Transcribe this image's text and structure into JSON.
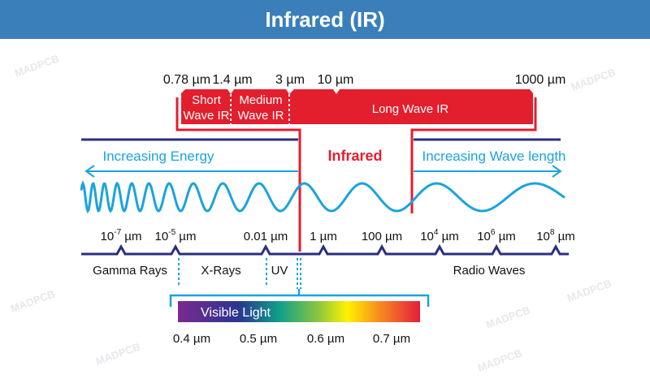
{
  "title": "Infrared (IR)",
  "watermark": "MADPCB",
  "ir_bands": {
    "boundaries": [
      "0.78 µm",
      "1.4 µm",
      "3 µm",
      "10 µm",
      "1000 µm"
    ],
    "short": [
      "Short",
      "Wave IR"
    ],
    "medium": [
      "Medium",
      "Wave IR"
    ],
    "long": "Long Wave IR"
  },
  "infrared_label": "Infrared",
  "increasing_energy": "Increasing Energy",
  "increasing_wavelength": "Increasing Wave length",
  "axis_ticks": [
    {
      "base": "10",
      "exp": "-7",
      "unit": " µm"
    },
    {
      "base": "10",
      "exp": "-5",
      "unit": " µm"
    },
    {
      "base": "0.01",
      "exp": "",
      "unit": " µm"
    },
    {
      "base": "1",
      "exp": "",
      "unit": " µm"
    },
    {
      "base": "100",
      "exp": "",
      "unit": " µm"
    },
    {
      "base": "10",
      "exp": "4",
      "unit": " µm"
    },
    {
      "base": "10",
      "exp": "6",
      "unit": " µm"
    },
    {
      "base": "10",
      "exp": "8",
      "unit": " µm"
    }
  ],
  "regions": {
    "gamma": "Gamma Rays",
    "xray": "X-Rays",
    "uv": "UV",
    "radio": "Radio Waves"
  },
  "visible": {
    "label": "Visible Light",
    "ticks": [
      "0.4 µm",
      "0.5 µm",
      "0.6 µm",
      "0.7 µm"
    ]
  },
  "colors": {
    "header": "#3b7fba",
    "red": "#e31e2d",
    "navy": "#2b2f7f",
    "cyan": "#1aa3df"
  }
}
